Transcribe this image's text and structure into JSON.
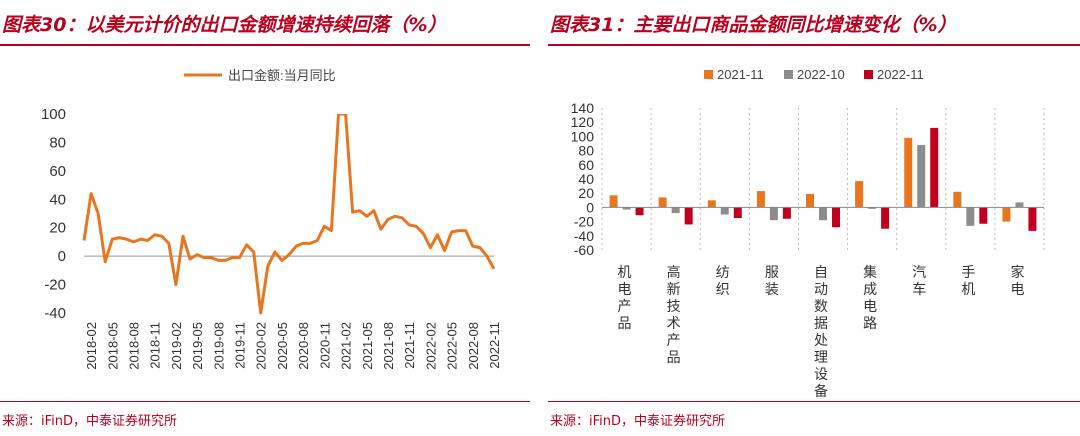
{
  "left_panel": {
    "title": "图表30：以美元计价的出口金额增速持续回落（%）",
    "source": "来源：iFinD，中泰证券研究所"
  },
  "right_panel": {
    "title": "图表31：主要出口商品金额同比增速变化（%）",
    "source": "来源：iFinD，中泰证券研究所"
  },
  "colors": {
    "accent": "#b8001f",
    "line": "#e8761e",
    "s2021": "#e8761e",
    "s2022_10": "#8c8c8c",
    "s2022_11": "#c0001e"
  },
  "chart_data": [
    {
      "type": "line",
      "legend": "top-center",
      "series": [
        {
          "name": "出口金额:当月同比",
          "values": [
            [
              "2018-01",
              11
            ],
            [
              "2018-02",
              44
            ],
            [
              "2018-03",
              30
            ],
            [
              "2018-04",
              -4
            ],
            [
              "2018-05",
              12
            ],
            [
              "2018-06",
              13
            ],
            [
              "2018-07",
              12
            ],
            [
              "2018-08",
              10
            ],
            [
              "2018-09",
              12
            ],
            [
              "2018-10",
              11
            ],
            [
              "2018-11",
              15
            ],
            [
              "2018-12",
              14
            ],
            [
              "2019-01",
              9
            ],
            [
              "2019-02",
              -20
            ],
            [
              "2019-03",
              14
            ],
            [
              "2019-04",
              -2
            ],
            [
              "2019-05",
              1
            ],
            [
              "2019-06",
              -1
            ],
            [
              "2019-07",
              -1
            ],
            [
              "2019-08",
              -3
            ],
            [
              "2019-09",
              -3
            ],
            [
              "2019-10",
              -1
            ],
            [
              "2019-11",
              -1
            ],
            [
              "2019-12",
              8
            ],
            [
              "2020-01",
              3
            ],
            [
              "2020-02",
              -40
            ],
            [
              "2020-03",
              -7
            ],
            [
              "2020-04",
              3
            ],
            [
              "2020-05",
              -3
            ],
            [
              "2020-06",
              1
            ],
            [
              "2020-07",
              7
            ],
            [
              "2020-08",
              9
            ],
            [
              "2020-09",
              9
            ],
            [
              "2020-10",
              11
            ],
            [
              "2020-11",
              21
            ],
            [
              "2020-12",
              18
            ],
            [
              "2021-01",
              100
            ],
            [
              "2021-02",
              100
            ],
            [
              "2021-03",
              31
            ],
            [
              "2021-04",
              32
            ],
            [
              "2021-05",
              28
            ],
            [
              "2021-06",
              32
            ],
            [
              "2021-07",
              19
            ],
            [
              "2021-08",
              26
            ],
            [
              "2021-09",
              28
            ],
            [
              "2021-10",
              27
            ],
            [
              "2021-11",
              22
            ],
            [
              "2021-12",
              21
            ],
            [
              "2022-01",
              16
            ],
            [
              "2022-02",
              6
            ],
            [
              "2022-03",
              15
            ],
            [
              "2022-04",
              4
            ],
            [
              "2022-05",
              17
            ],
            [
              "2022-06",
              18
            ],
            [
              "2022-07",
              18
            ],
            [
              "2022-08",
              7
            ],
            [
              "2022-09",
              6
            ],
            [
              "2022-10",
              0
            ],
            [
              "2022-11",
              -9
            ]
          ]
        }
      ],
      "ylim": [
        -40,
        100
      ],
      "yticks": [
        -40,
        -20,
        0,
        20,
        40,
        60,
        80,
        100
      ],
      "xticks": [
        "2018-02",
        "2018-05",
        "2018-08",
        "2018-11",
        "2019-02",
        "2019-05",
        "2019-08",
        "2019-11",
        "2020-02",
        "2020-05",
        "2020-08",
        "2020-11",
        "2021-02",
        "2021-05",
        "2021-08",
        "2021-11",
        "2022-02",
        "2022-05",
        "2022-08",
        "2022-11"
      ]
    },
    {
      "type": "bar",
      "legend": "top-center",
      "categories": [
        "机电产品",
        "高新技术产品",
        "纺织",
        "服装",
        "自动数据处理设备",
        "集成电路",
        "汽车",
        "手机",
        "家电"
      ],
      "series": [
        {
          "name": "2021-11",
          "values": [
            17,
            14,
            10,
            23,
            19,
            37,
            98,
            22,
            -20
          ]
        },
        {
          "name": "2022-10",
          "values": [
            -3,
            -8,
            -10,
            -18,
            -18,
            -2,
            88,
            -26,
            7
          ]
        },
        {
          "name": "2022-11",
          "values": [
            -11,
            -24,
            -15,
            -16,
            -28,
            -30,
            112,
            -23,
            -33
          ]
        }
      ],
      "ylim": [
        -60,
        140
      ],
      "yticks": [
        -60,
        -40,
        -20,
        0,
        20,
        40,
        60,
        80,
        100,
        120,
        140
      ]
    }
  ]
}
